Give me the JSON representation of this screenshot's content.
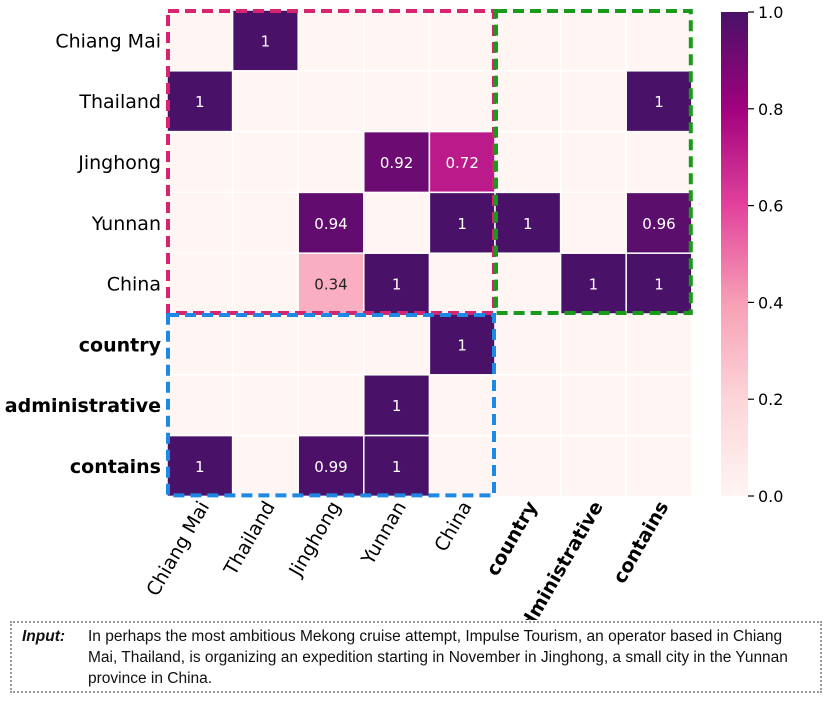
{
  "chart_data": {
    "type": "heatmap",
    "rows": [
      "Chiang Mai",
      "Thailand",
      "Jinghong",
      "Yunnan",
      "China",
      "country",
      "administrative",
      "contains"
    ],
    "columns": [
      "Chiang Mai",
      "Thailand",
      "Jinghong",
      "Yunnan",
      "China",
      "country",
      "administrative",
      "contains"
    ],
    "bold_labels": [
      "country",
      "administrative",
      "contains"
    ],
    "cells": [
      {
        "row": 0,
        "col": 1,
        "value": 1,
        "label": "1"
      },
      {
        "row": 1,
        "col": 0,
        "value": 1,
        "label": "1"
      },
      {
        "row": 1,
        "col": 7,
        "value": 1,
        "label": "1"
      },
      {
        "row": 2,
        "col": 3,
        "value": 0.92,
        "label": "0.92"
      },
      {
        "row": 2,
        "col": 4,
        "value": 0.72,
        "label": "0.72"
      },
      {
        "row": 3,
        "col": 2,
        "value": 0.94,
        "label": "0.94"
      },
      {
        "row": 3,
        "col": 4,
        "value": 1,
        "label": "1"
      },
      {
        "row": 3,
        "col": 5,
        "value": 1,
        "label": "1"
      },
      {
        "row": 3,
        "col": 7,
        "value": 0.96,
        "label": "0.96"
      },
      {
        "row": 4,
        "col": 2,
        "value": 0.34,
        "label": "0.34"
      },
      {
        "row": 4,
        "col": 3,
        "value": 1,
        "label": "1"
      },
      {
        "row": 4,
        "col": 6,
        "value": 1,
        "label": "1"
      },
      {
        "row": 4,
        "col": 7,
        "value": 1,
        "label": "1"
      },
      {
        "row": 5,
        "col": 4,
        "value": 1,
        "label": "1"
      },
      {
        "row": 6,
        "col": 3,
        "value": 1,
        "label": "1"
      },
      {
        "row": 7,
        "col": 0,
        "value": 1,
        "label": "1"
      },
      {
        "row": 7,
        "col": 2,
        "value": 0.99,
        "label": "0.99"
      },
      {
        "row": 7,
        "col": 3,
        "value": 1,
        "label": "1"
      }
    ],
    "colorbar": {
      "range": [
        0.0,
        1.0
      ],
      "ticks": [
        "0.0",
        "0.2",
        "0.4",
        "0.6",
        "0.8",
        "1.0"
      ],
      "colors": [
        "#fff5f3",
        "#fcd5d9",
        "#f79fb6",
        "#e2429b",
        "#a1017e",
        "#491168"
      ]
    },
    "regions": [
      {
        "name": "entity-entity",
        "color": "#d6246e",
        "row_range": [
          0,
          4
        ],
        "col_range": [
          0,
          4
        ]
      },
      {
        "name": "entity-relation",
        "color": "#1a9a1a",
        "row_range": [
          0,
          4
        ],
        "col_range": [
          5,
          7
        ]
      },
      {
        "name": "relation-entity",
        "color": "#1e88e5",
        "row_range": [
          5,
          7
        ],
        "col_range": [
          0,
          4
        ]
      }
    ]
  },
  "input": {
    "label": "Input:",
    "text": "In perhaps the most ambitious Mekong cruise attempt, Impulse Tourism, an operator based in Chiang Mai, Thailand, is organizing an expedition starting in November in Jinghong, a small city in the Yunnan province in China."
  }
}
